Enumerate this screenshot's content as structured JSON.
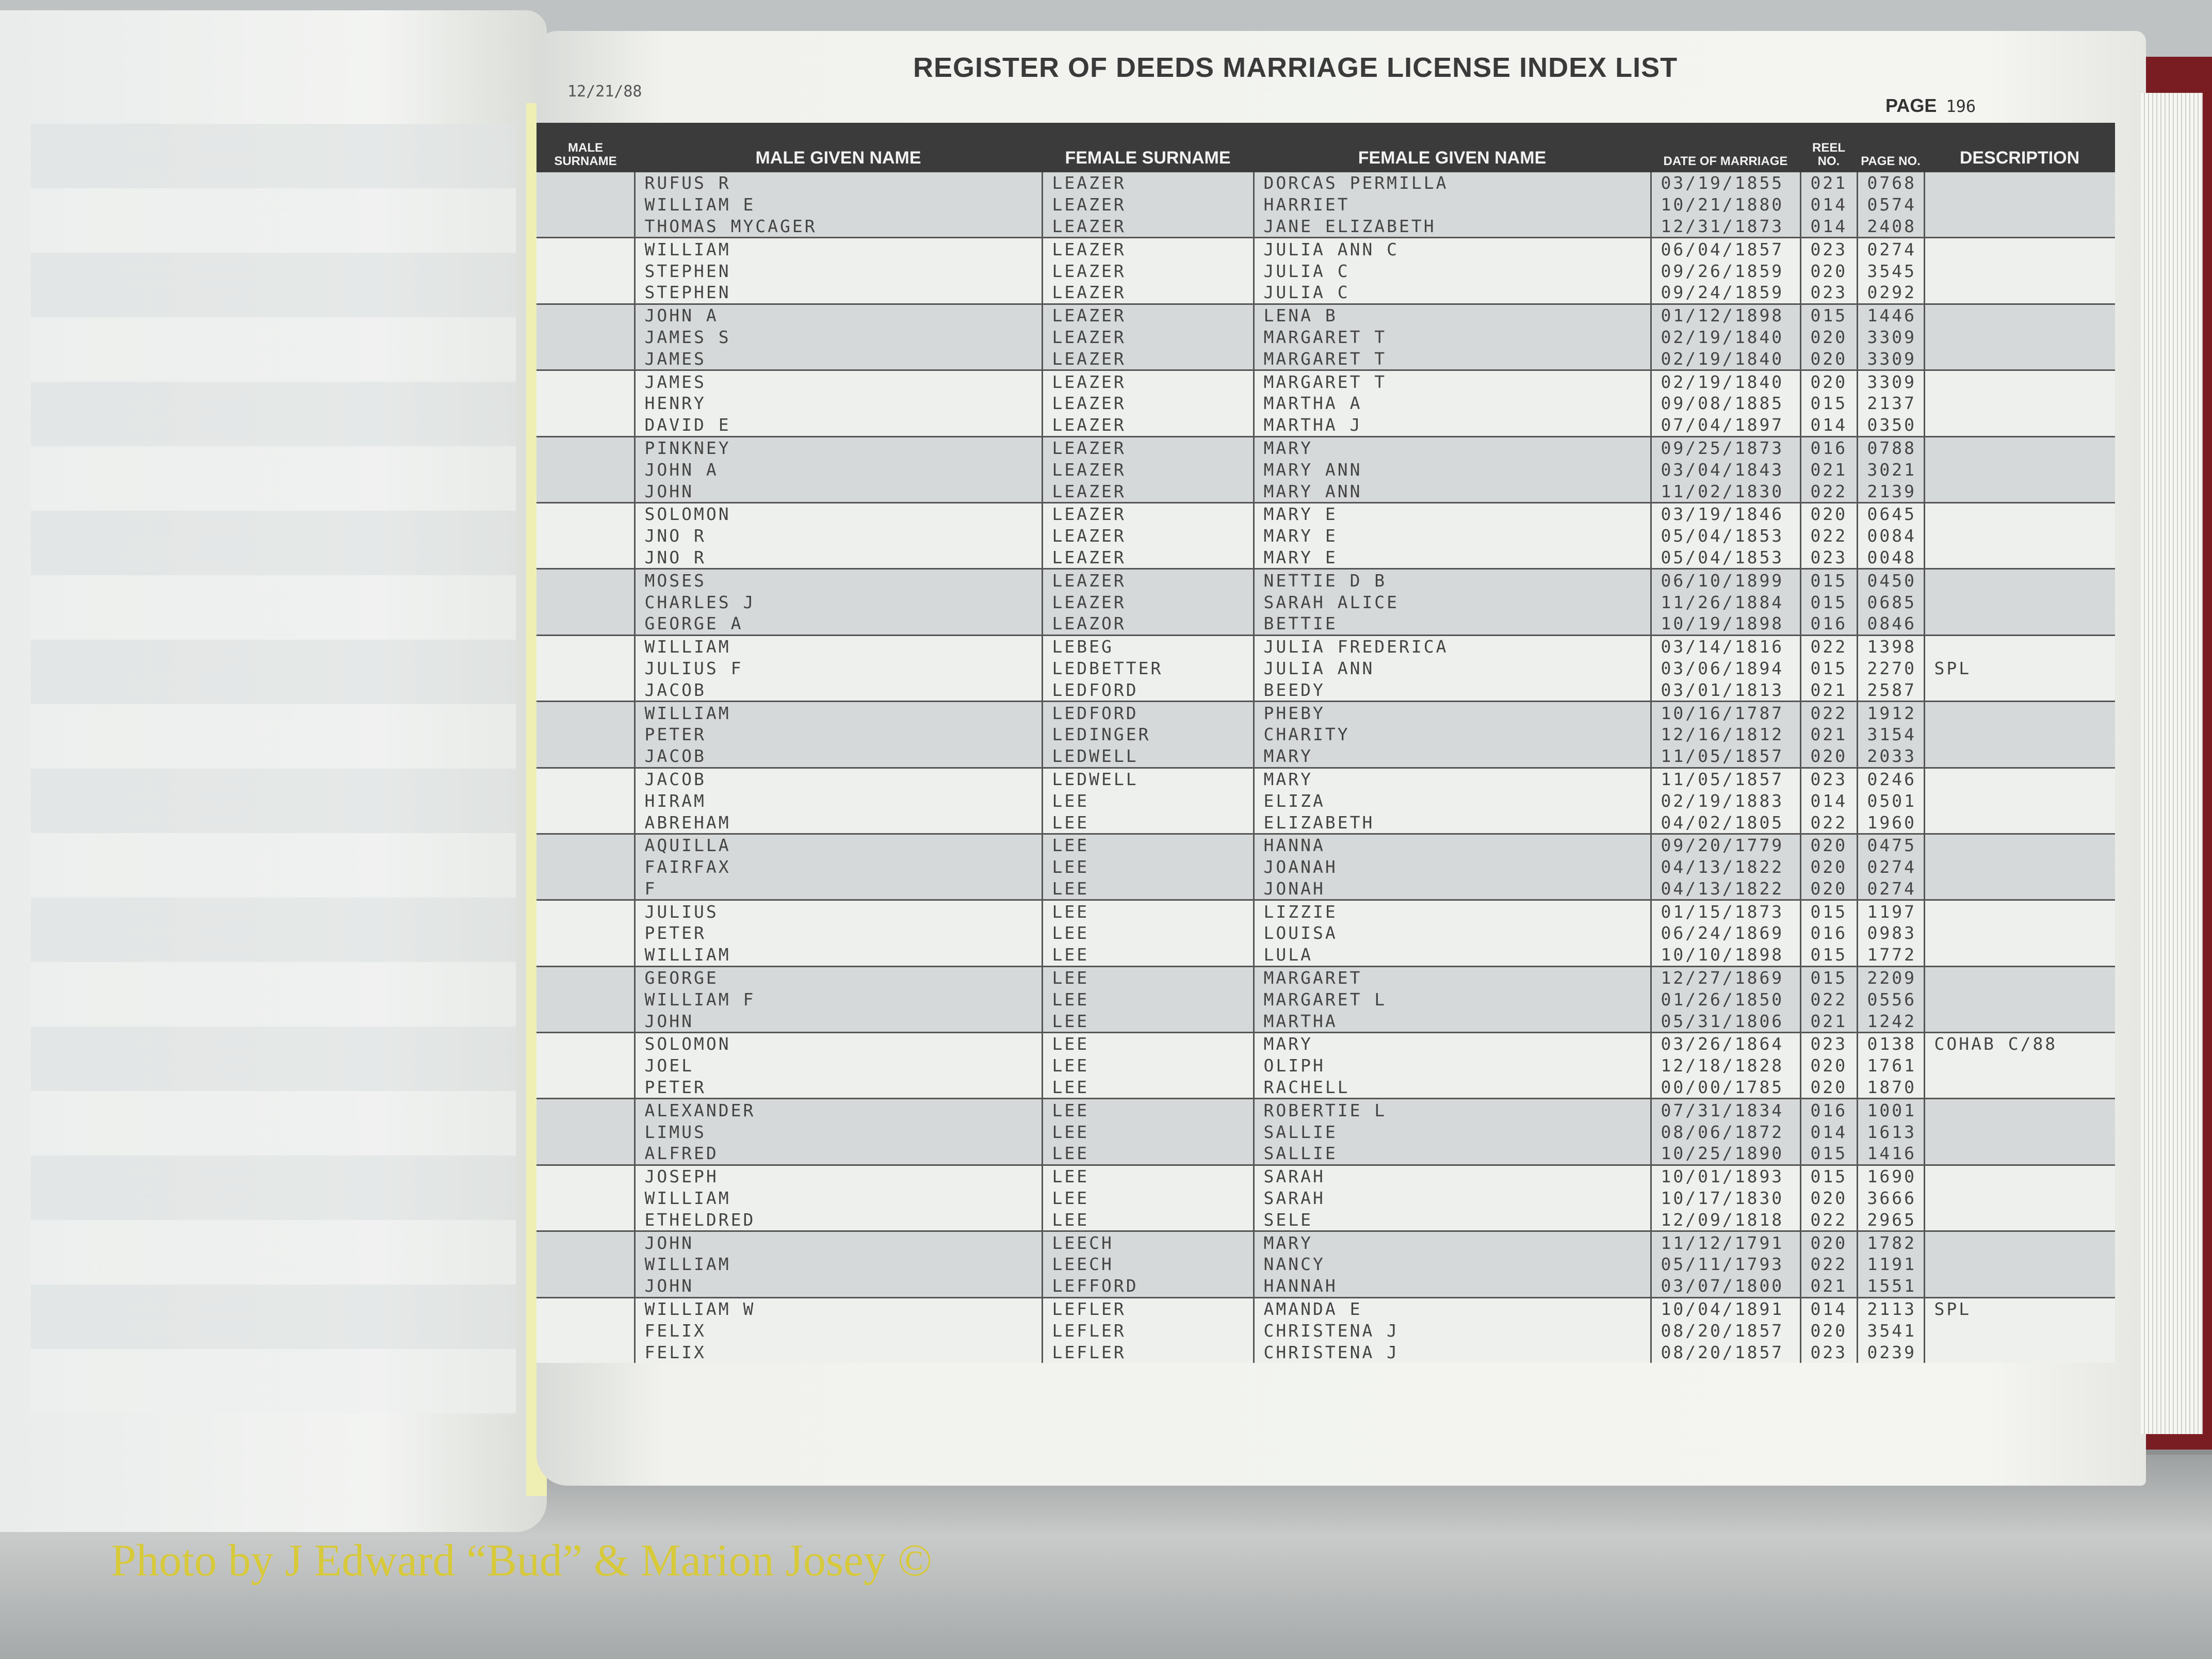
{
  "header": {
    "print_date": "12/21/88",
    "title": "REGISTER OF DEEDS MARRIAGE LICENSE INDEX LIST",
    "page_label": "PAGE",
    "page_number": "196"
  },
  "columns": [
    "MALE SURNAME",
    "MALE GIVEN NAME",
    "FEMALE SURNAME",
    "FEMALE GIVEN NAME",
    "DATE OF MARRIAGE",
    "REEL NO.",
    "PAGE NO.",
    "DESCRIPTION"
  ],
  "rows": [
    [
      "",
      "RUFUS R",
      "LEAZER",
      "DORCAS PERMILLA",
      "03/19/1855",
      "021",
      "0768",
      ""
    ],
    [
      "",
      "WILLIAM E",
      "LEAZER",
      "HARRIET",
      "10/21/1880",
      "014",
      "0574",
      ""
    ],
    [
      "",
      "THOMAS MYCAGER",
      "LEAZER",
      "JANE ELIZABETH",
      "12/31/1873",
      "014",
      "2408",
      ""
    ],
    [
      "",
      "WILLIAM",
      "LEAZER",
      "JULIA ANN C",
      "06/04/1857",
      "023",
      "0274",
      ""
    ],
    [
      "",
      "STEPHEN",
      "LEAZER",
      "JULIA C",
      "09/26/1859",
      "020",
      "3545",
      ""
    ],
    [
      "",
      "STEPHEN",
      "LEAZER",
      "JULIA C",
      "09/24/1859",
      "023",
      "0292",
      ""
    ],
    [
      "",
      "JOHN A",
      "LEAZER",
      "LENA B",
      "01/12/1898",
      "015",
      "1446",
      ""
    ],
    [
      "",
      "JAMES S",
      "LEAZER",
      "MARGARET T",
      "02/19/1840",
      "020",
      "3309",
      ""
    ],
    [
      "",
      "JAMES",
      "LEAZER",
      "MARGARET T",
      "02/19/1840",
      "020",
      "3309",
      ""
    ],
    [
      "",
      "JAMES",
      "LEAZER",
      "MARGARET T",
      "02/19/1840",
      "020",
      "3309",
      ""
    ],
    [
      "",
      "HENRY",
      "LEAZER",
      "MARTHA A",
      "09/08/1885",
      "015",
      "2137",
      ""
    ],
    [
      "",
      "DAVID E",
      "LEAZER",
      "MARTHA J",
      "07/04/1897",
      "014",
      "0350",
      ""
    ],
    [
      "",
      "PINKNEY",
      "LEAZER",
      "MARY",
      "09/25/1873",
      "016",
      "0788",
      ""
    ],
    [
      "",
      "JOHN A",
      "LEAZER",
      "MARY ANN",
      "03/04/1843",
      "021",
      "3021",
      ""
    ],
    [
      "",
      "JOHN",
      "LEAZER",
      "MARY ANN",
      "11/02/1830",
      "022",
      "2139",
      ""
    ],
    [
      "",
      "SOLOMON",
      "LEAZER",
      "MARY E",
      "03/19/1846",
      "020",
      "0645",
      ""
    ],
    [
      "",
      "JNO R",
      "LEAZER",
      "MARY E",
      "05/04/1853",
      "022",
      "0084",
      ""
    ],
    [
      "",
      "JNO R",
      "LEAZER",
      "MARY E",
      "05/04/1853",
      "023",
      "0048",
      ""
    ],
    [
      "",
      "MOSES",
      "LEAZER",
      "NETTIE D B",
      "06/10/1899",
      "015",
      "0450",
      ""
    ],
    [
      "",
      "CHARLES J",
      "LEAZER",
      "SARAH ALICE",
      "11/26/1884",
      "015",
      "0685",
      ""
    ],
    [
      "",
      "GEORGE A",
      "LEAZOR",
      "BETTIE",
      "10/19/1898",
      "016",
      "0846",
      ""
    ],
    [
      "",
      "WILLIAM",
      "LEBEG",
      "JULIA FREDERICA",
      "03/14/1816",
      "022",
      "1398",
      ""
    ],
    [
      "",
      "JULIUS F",
      "LEDBETTER",
      "JULIA ANN",
      "03/06/1894",
      "015",
      "2270",
      "SPL"
    ],
    [
      "",
      "JACOB",
      "LEDFORD",
      "BEEDY",
      "03/01/1813",
      "021",
      "2587",
      ""
    ],
    [
      "",
      "WILLIAM",
      "LEDFORD",
      "PHEBY",
      "10/16/1787",
      "022",
      "1912",
      ""
    ],
    [
      "",
      "PETER",
      "LEDINGER",
      "CHARITY",
      "12/16/1812",
      "021",
      "3154",
      ""
    ],
    [
      "",
      "JACOB",
      "LEDWELL",
      "MARY",
      "11/05/1857",
      "020",
      "2033",
      ""
    ],
    [
      "",
      "JACOB",
      "LEDWELL",
      "MARY",
      "11/05/1857",
      "023",
      "0246",
      ""
    ],
    [
      "",
      "HIRAM",
      "LEE",
      "ELIZA",
      "02/19/1883",
      "014",
      "0501",
      ""
    ],
    [
      "",
      "ABREHAM",
      "LEE",
      "ELIZABETH",
      "04/02/1805",
      "022",
      "1960",
      ""
    ],
    [
      "",
      "AQUILLA",
      "LEE",
      "HANNA",
      "09/20/1779",
      "020",
      "0475",
      ""
    ],
    [
      "",
      "FAIRFAX",
      "LEE",
      "JOANAH",
      "04/13/1822",
      "020",
      "0274",
      ""
    ],
    [
      "",
      "F",
      "LEE",
      "JONAH",
      "04/13/1822",
      "020",
      "0274",
      ""
    ],
    [
      "",
      "JULIUS",
      "LEE",
      "LIZZIE",
      "01/15/1873",
      "015",
      "1197",
      ""
    ],
    [
      "",
      "PETER",
      "LEE",
      "LOUISA",
      "06/24/1869",
      "016",
      "0983",
      ""
    ],
    [
      "",
      "WILLIAM",
      "LEE",
      "LULA",
      "10/10/1898",
      "015",
      "1772",
      ""
    ],
    [
      "",
      "GEORGE",
      "LEE",
      "MARGARET",
      "12/27/1869",
      "015",
      "2209",
      ""
    ],
    [
      "",
      "WILLIAM F",
      "LEE",
      "MARGARET L",
      "01/26/1850",
      "022",
      "0556",
      ""
    ],
    [
      "",
      "JOHN",
      "LEE",
      "MARTHA",
      "05/31/1806",
      "021",
      "1242",
      ""
    ],
    [
      "",
      "SOLOMON",
      "LEE",
      "MARY",
      "03/26/1864",
      "023",
      "0138",
      "COHAB C/88"
    ],
    [
      "",
      "JOEL",
      "LEE",
      "OLIPH",
      "12/18/1828",
      "020",
      "1761",
      ""
    ],
    [
      "",
      "PETER",
      "LEE",
      "RACHELL",
      "00/00/1785",
      "020",
      "1870",
      ""
    ],
    [
      "",
      "ALEXANDER",
      "LEE",
      "ROBERTIE L",
      "07/31/1834",
      "016",
      "1001",
      ""
    ],
    [
      "",
      "LIMUS",
      "LEE",
      "SALLIE",
      "08/06/1872",
      "014",
      "1613",
      ""
    ],
    [
      "",
      "ALFRED",
      "LEE",
      "SALLIE",
      "10/25/1890",
      "015",
      "1416",
      ""
    ],
    [
      "",
      "JOSEPH",
      "LEE",
      "SARAH",
      "10/01/1893",
      "015",
      "1690",
      ""
    ],
    [
      "",
      "WILLIAM",
      "LEE",
      "SARAH",
      "10/17/1830",
      "020",
      "3666",
      ""
    ],
    [
      "",
      "ETHELDRED",
      "LEE",
      "SELE",
      "12/09/1818",
      "022",
      "2965",
      ""
    ],
    [
      "",
      "JOHN",
      "LEECH",
      "MARY",
      "11/12/1791",
      "020",
      "1782",
      ""
    ],
    [
      "",
      "WILLIAM",
      "LEECH",
      "NANCY",
      "05/11/1793",
      "022",
      "1191",
      ""
    ],
    [
      "",
      "JOHN",
      "LEFFORD",
      "HANNAH",
      "03/07/1800",
      "021",
      "1551",
      ""
    ],
    [
      "",
      "WILLIAM W",
      "LEFLER",
      "AMANDA E",
      "10/04/1891",
      "014",
      "2113",
      "SPL"
    ],
    [
      "",
      "FELIX",
      "LEFLER",
      "CHRISTENA J",
      "08/20/1857",
      "020",
      "3541",
      ""
    ],
    [
      "",
      "FELIX",
      "LEFLER",
      "CHRISTENA J",
      "08/20/1857",
      "023",
      "0239",
      ""
    ]
  ],
  "credit": "Photo by J Edward “Bud” & Marion Josey ©",
  "colors": {
    "header_bg": "#3b3b3b",
    "band_dark": "#d6d9d9",
    "band_light": "#eef0ee",
    "credit": "#d7c93a",
    "cover": "#7a1d22"
  }
}
